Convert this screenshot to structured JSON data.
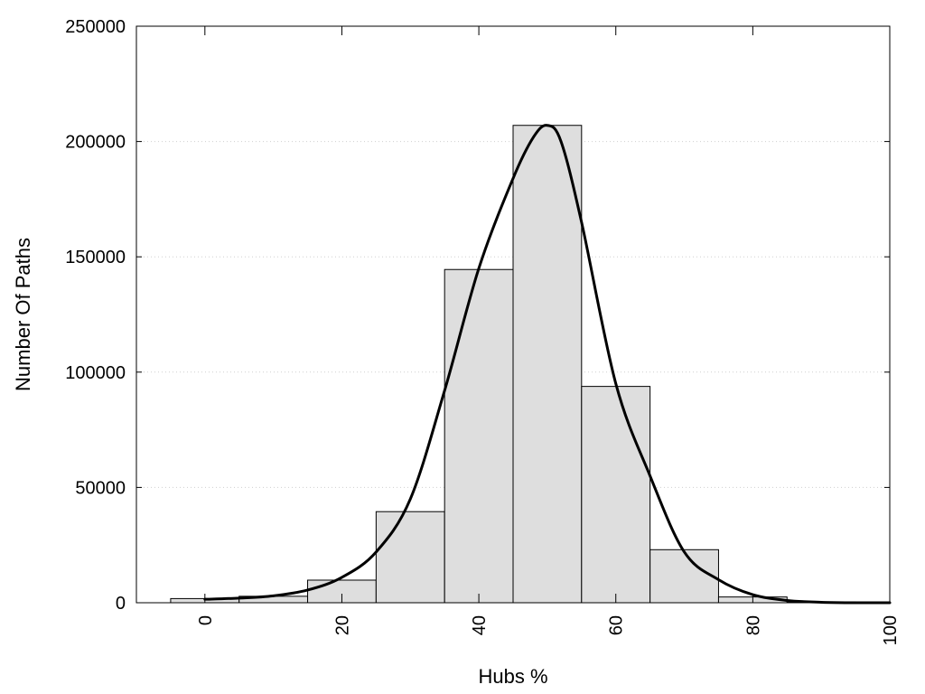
{
  "chart_data": {
    "type": "bar",
    "xlabel": "Hubs %",
    "ylabel": "Number Of Paths",
    "xlim": [
      -10,
      100
    ],
    "ylim": [
      0,
      250000
    ],
    "x_ticks": [
      "0",
      "20",
      "40",
      "60",
      "80",
      "100"
    ],
    "y_ticks": [
      "0",
      "50000",
      "100000",
      "150000",
      "200000",
      "250000"
    ],
    "grid": "horizontal dotted",
    "bar_color": "#dedede",
    "bins": [
      {
        "start": -5,
        "end": 5,
        "value": 1800
      },
      {
        "start": 5,
        "end": 15,
        "value": 2800
      },
      {
        "start": 15,
        "end": 25,
        "value": 9800
      },
      {
        "start": 25,
        "end": 35,
        "value": 39500
      },
      {
        "start": 35,
        "end": 45,
        "value": 144500
      },
      {
        "start": 45,
        "end": 55,
        "value": 207000
      },
      {
        "start": 55,
        "end": 65,
        "value": 93800
      },
      {
        "start": 65,
        "end": 75,
        "value": 23000
      },
      {
        "start": 75,
        "end": 85,
        "value": 2500
      },
      {
        "start": 85,
        "end": 95,
        "value": 400
      },
      {
        "start": 95,
        "end": 105,
        "value": 100
      }
    ],
    "curve": {
      "type": "line",
      "x": [
        0,
        5,
        10,
        15,
        20,
        25,
        30,
        35,
        40,
        45,
        48,
        50,
        52,
        55,
        60,
        65,
        70,
        75,
        80,
        85,
        90,
        95,
        100
      ],
      "y": [
        1500,
        2000,
        3000,
        5500,
        11000,
        22000,
        45000,
        92000,
        145000,
        184000,
        202000,
        207000,
        200000,
        165000,
        95000,
        55000,
        22000,
        10000,
        3500,
        1000,
        200,
        0,
        0
      ]
    }
  }
}
